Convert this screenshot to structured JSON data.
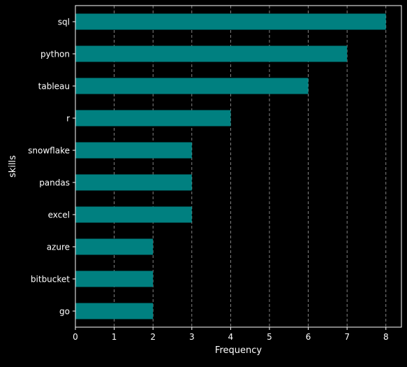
{
  "chart_data": {
    "type": "bar",
    "orientation": "horizontal",
    "title": "",
    "xlabel": "Frequency",
    "ylabel": "skills",
    "categories": [
      "sql",
      "python",
      "tableau",
      "r",
      "snowflake",
      "pandas",
      "excel",
      "azure",
      "bitbucket",
      "go"
    ],
    "values": [
      8,
      7,
      6,
      4,
      3,
      3,
      3,
      2,
      2,
      2
    ],
    "xlim": [
      0,
      8.4
    ],
    "xticks": [
      0,
      1,
      2,
      3,
      4,
      5,
      6,
      7,
      8
    ],
    "grid": "vertical dashed",
    "legend": "none",
    "colors": {
      "bar": "#008080",
      "background": "#000000",
      "text": "#ffffff",
      "grid": "#cccccc"
    }
  }
}
